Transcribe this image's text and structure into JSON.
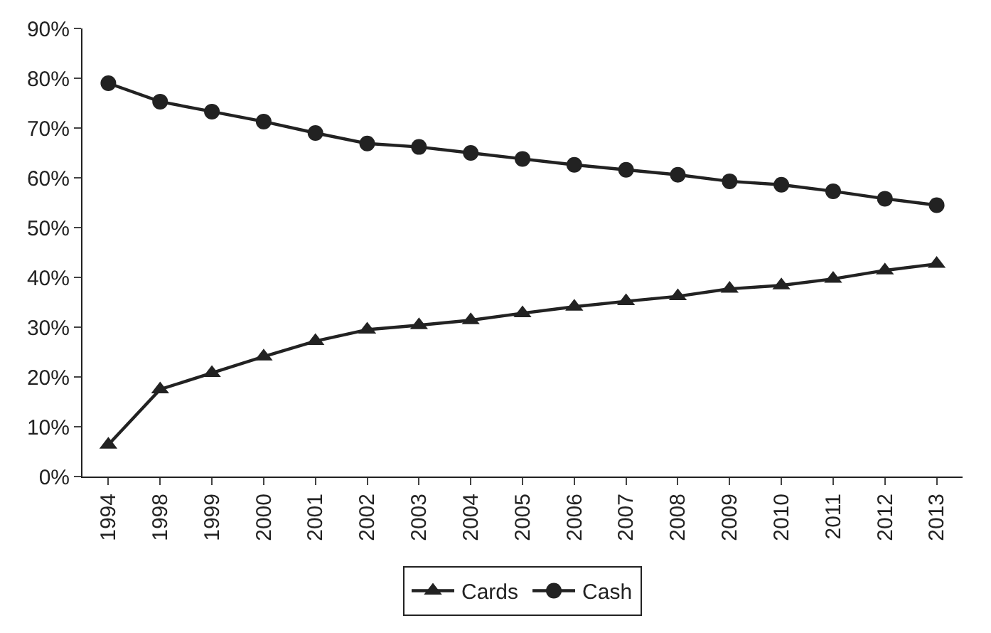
{
  "chart_data": {
    "type": "line",
    "categories": [
      "1994",
      "1998",
      "1999",
      "2000",
      "2001",
      "2002",
      "2003",
      "2004",
      "2005",
      "2006",
      "2007",
      "2008",
      "2009",
      "2010",
      "2011",
      "2012",
      "2013"
    ],
    "series": [
      {
        "name": "Cards",
        "color": "#222222",
        "marker": "triangle",
        "values": [
          6.4,
          17.5,
          20.8,
          24.1,
          27.2,
          29.5,
          30.4,
          31.4,
          32.8,
          34.1,
          35.2,
          36.2,
          37.7,
          38.4,
          39.7,
          41.4,
          42.7
        ]
      },
      {
        "name": "Cash",
        "color": "#222222",
        "marker": "circle",
        "values": [
          79.0,
          75.3,
          73.3,
          71.3,
          69.0,
          66.9,
          66.2,
          65.0,
          63.8,
          62.6,
          61.6,
          60.6,
          59.3,
          58.6,
          57.3,
          55.8,
          54.5
        ]
      }
    ],
    "ylim": [
      0,
      90
    ],
    "yticks": [
      {
        "value": 0,
        "label": "0%"
      },
      {
        "value": 10,
        "label": "10%"
      },
      {
        "value": 20,
        "label": "20%"
      },
      {
        "value": 30,
        "label": "30%"
      },
      {
        "value": 40,
        "label": "40%"
      },
      {
        "value": 50,
        "label": "50%"
      },
      {
        "value": 60,
        "label": "60%"
      },
      {
        "value": 70,
        "label": "70%"
      },
      {
        "value": 80,
        "label": "80%"
      },
      {
        "value": 90,
        "label": "90%"
      }
    ],
    "legend": "bottom",
    "line_style": "solid"
  }
}
